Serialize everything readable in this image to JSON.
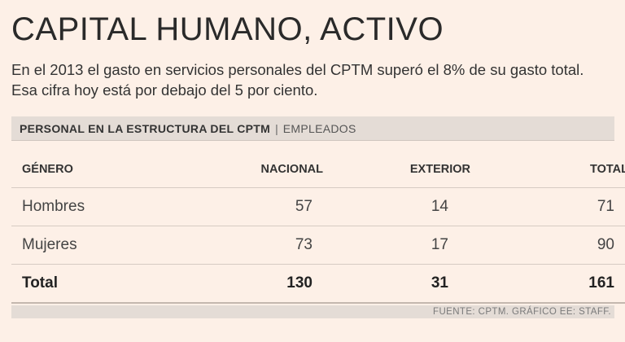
{
  "header": {
    "title": "CAPITAL HUMANO, ACTIVO",
    "subtitle": "En el 2013 el gasto en servicios personales del CPTM superó el 8% de su gasto total. Esa cifra hoy está por debajo del 5 por ciento."
  },
  "section": {
    "label": "PERSONAL EN LA ESTRUCTURA DEL CPTM",
    "separator": "|",
    "unit": "EMPLEADOS"
  },
  "chart_data": {
    "type": "table",
    "title": "PERSONAL EN LA ESTRUCTURA DEL CPTM",
    "unit": "EMPLEADOS",
    "columns": [
      "GÉNERO",
      "NACIONAL",
      "EXTERIOR",
      "TOTAL"
    ],
    "rows": [
      {
        "label": "Hombres",
        "values": [
          "57",
          "14",
          "71"
        ]
      },
      {
        "label": "Mujeres",
        "values": [
          "73",
          "17",
          "90"
        ]
      },
      {
        "label": "Total",
        "values": [
          "130",
          "31",
          "161"
        ]
      }
    ]
  },
  "footer": {
    "source": "FUENTE: CPTM. GRÁFICO EE: STAFF."
  }
}
